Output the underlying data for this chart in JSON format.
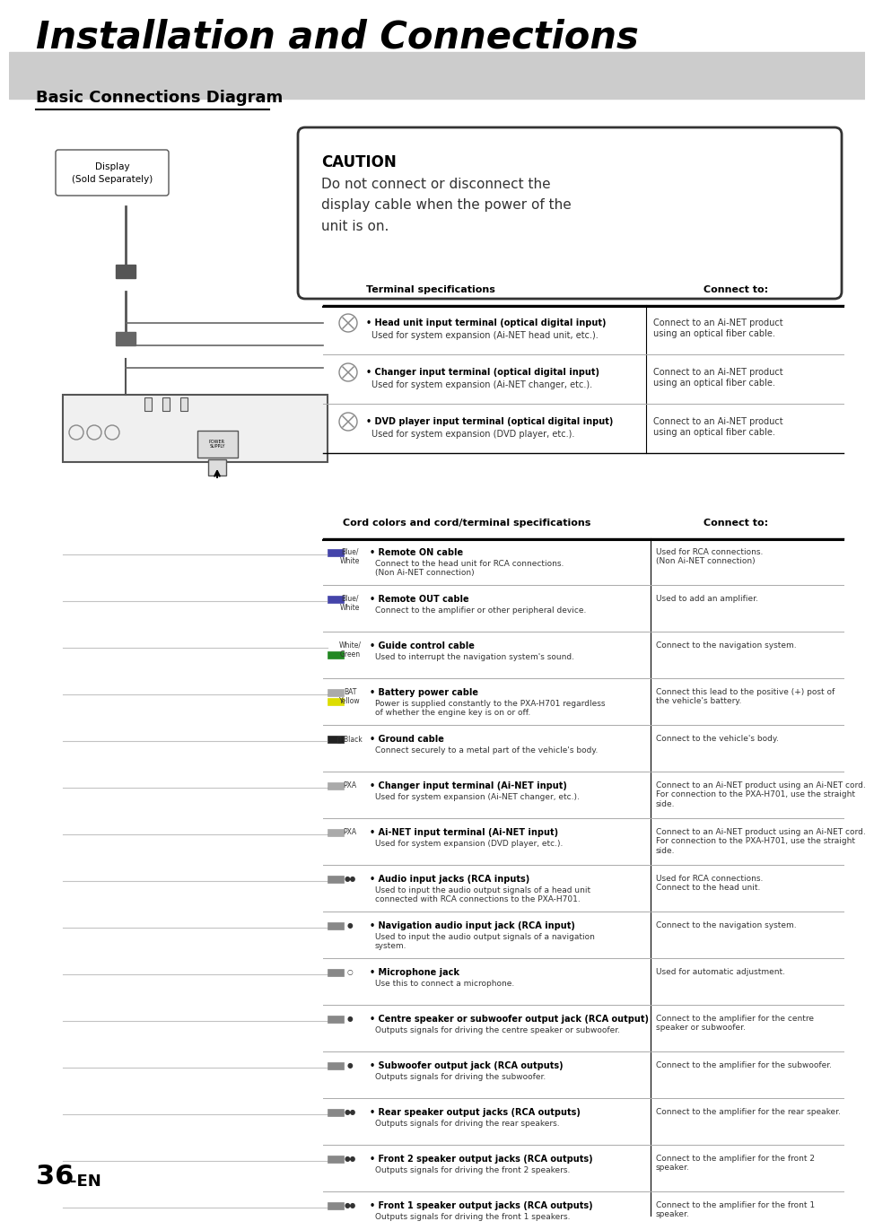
{
  "title": "Installation and Connections",
  "subtitle": "Basic Connections Diagram",
  "caution_title": "CAUTION",
  "caution_text": "Do not connect or disconnect the\ndisplay cable when the power of the\nunit is on.",
  "display_label": "Display\n(Sold Separately)",
  "terminal_header1": "Terminal specifications",
  "terminal_header2": "Connect to:",
  "terminal_rows": [
    {
      "bold": "Head unit input terminal (optical digital input)",
      "normal": "Used for system expansion (Ai-NET head unit, etc.).",
      "connect": "Connect to an Ai-NET product\nusing an optical fiber cable."
    },
    {
      "bold": "Changer input terminal (optical digital input)",
      "normal": "Used for system expansion (Ai-NET changer, etc.).",
      "connect": "Connect to an Ai-NET product\nusing an optical fiber cable."
    },
    {
      "bold": "DVD player input terminal (optical digital input)",
      "normal": "Used for system expansion (DVD player, etc.).",
      "connect": "Connect to an Ai-NET product\nusing an optical fiber cable."
    }
  ],
  "cord_header1": "Cord colors and cord/terminal specifications",
  "cord_header2": "Connect to:",
  "cord_rows": [
    {
      "color1": "#4444aa",
      "color2": "#ffffff",
      "label1": "Blue/",
      "label2": "White",
      "bold": "Remote ON cable",
      "normal": "Connect to the head unit for RCA connections.\n(Non Ai-NET connection)",
      "connect": "Used for RCA connections.\n(Non Ai-NET connection)"
    },
    {
      "color1": "#4444aa",
      "color2": "#ffffff",
      "label1": "Blue/",
      "label2": "White",
      "bold": "Remote OUT cable",
      "normal": "Connect to the amplifier or other peripheral device.",
      "connect": "Used to add an amplifier."
    },
    {
      "color1": "#ffffff",
      "color2": "#228822",
      "label1": "White/",
      "label2": "Green",
      "bold": "Guide control cable",
      "normal": "Used to interrupt the navigation system's sound.",
      "connect": "Connect to the navigation system."
    },
    {
      "color1": "#aaaaaa",
      "color2": "#dddd00",
      "label1": "BAT",
      "label2": "Yellow",
      "bold": "Battery power cable",
      "normal": "Power is supplied constantly to the PXA-H701 regardless\nof whether the engine key is on or off.",
      "connect": "Connect this lead to the positive (+) post of\nthe vehicle's battery."
    },
    {
      "color1": "#222222",
      "color2": "#222222",
      "label1": "⬛ Black",
      "label2": "",
      "bold": "Ground cable",
      "normal": "Connect securely to a metal part of the vehicle's body.",
      "connect": "Connect to the vehicle's body."
    },
    {
      "color1": "#aaaaaa",
      "color2": "#aaaaaa",
      "label1": "PXA",
      "label2": "",
      "bold": "Changer input terminal (Ai-NET input)",
      "normal": "Used for system expansion (Ai-NET changer, etc.).",
      "connect": "Connect to an Ai-NET product using an Ai-NET cord.\nFor connection to the PXA-H701, use the straight\nside."
    },
    {
      "color1": "#aaaaaa",
      "color2": "#aaaaaa",
      "label1": "PXA",
      "label2": "",
      "bold": "Ai-NET input terminal (Ai-NET input)",
      "normal": "Used for system expansion (DVD player, etc.).",
      "connect": "Connect to an Ai-NET product using an Ai-NET cord.\nFor connection to the PXA-H701, use the straight\nside."
    },
    {
      "color1": "#888888",
      "color2": "#888888",
      "label1": "●●",
      "label2": "",
      "bold": "Audio input jacks (RCA inputs)",
      "normal": "Used to input the audio output signals of a head unit\nconnected with RCA connections to the PXA-H701.",
      "connect": "Used for RCA connections.\nConnect to the head unit."
    },
    {
      "color1": "#888888",
      "color2": "#888888",
      "label1": "●",
      "label2": "",
      "bold": "Navigation audio input jack (RCA input)",
      "normal": "Used to input the audio output signals of a navigation\nsystem.",
      "connect": "Connect to the navigation system."
    },
    {
      "color1": "#888888",
      "color2": "#888888",
      "label1": "○",
      "label2": "",
      "bold": "Microphone jack",
      "normal": "Use this to connect a microphone.",
      "connect": "Used for automatic adjustment."
    },
    {
      "color1": "#888888",
      "color2": "#888888",
      "label1": "●",
      "label2": "",
      "bold": "Centre speaker or subwoofer output jack (RCA output)",
      "normal": "Outputs signals for driving the centre speaker or subwoofer.",
      "connect": "Connect to the amplifier for the centre\nspeaker or subwoofer."
    },
    {
      "color1": "#888888",
      "color2": "#888888",
      "label1": "●",
      "label2": "",
      "bold": "Subwoofer output jack (RCA outputs)",
      "normal": "Outputs signals for driving the subwoofer.",
      "connect": "Connect to the amplifier for the subwoofer."
    },
    {
      "color1": "#888888",
      "color2": "#888888",
      "label1": "●●",
      "label2": "",
      "bold": "Rear speaker output jacks (RCA outputs)",
      "normal": "Outputs signals for driving the rear speakers.",
      "connect": "Connect to the amplifier for the rear speaker."
    },
    {
      "color1": "#888888",
      "color2": "#888888",
      "label1": "●●",
      "label2": "",
      "bold": "Front 2 speaker output jacks (RCA outputs)",
      "normal": "Outputs signals for driving the front 2 speakers.",
      "connect": "Connect to the amplifier for the front 2\nspeaker."
    },
    {
      "color1": "#888888",
      "color2": "#888888",
      "label1": "●●",
      "label2": "",
      "bold": "Front 1 speaker output jacks (RCA outputs)",
      "normal": "Outputs signals for driving the front 1 speakers.",
      "connect": "Connect to the amplifier for the front 1\nspeaker."
    }
  ],
  "page_number": "36",
  "page_suffix": "-EN",
  "bg_color": "#ffffff",
  "text_color": "#000000",
  "title_bg": "#cccccc"
}
